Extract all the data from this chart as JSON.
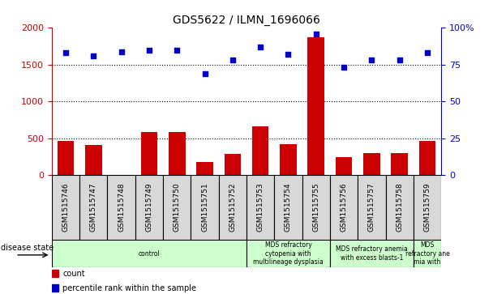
{
  "title": "GDS5622 / ILMN_1696066",
  "samples": [
    "GSM1515746",
    "GSM1515747",
    "GSM1515748",
    "GSM1515749",
    "GSM1515750",
    "GSM1515751",
    "GSM1515752",
    "GSM1515753",
    "GSM1515754",
    "GSM1515755",
    "GSM1515756",
    "GSM1515757",
    "GSM1515758",
    "GSM1515759"
  ],
  "counts": [
    460,
    410,
    0,
    580,
    580,
    180,
    290,
    660,
    420,
    1870,
    240,
    300,
    300,
    460
  ],
  "percentile_ranks": [
    83,
    81,
    84,
    85,
    85,
    69,
    78,
    87,
    82,
    96,
    73,
    78,
    78,
    83
  ],
  "bar_color": "#cc0000",
  "dot_color": "#0000cc",
  "left_axis_color": "#cc0000",
  "right_axis_color": "#0000cc",
  "ylim_left": [
    0,
    2000
  ],
  "ylim_right": [
    0,
    100
  ],
  "left_yticks": [
    0,
    500,
    1000,
    1500,
    2000
  ],
  "right_yticks": [
    0,
    25,
    50,
    75,
    100
  ],
  "right_yticklabels": [
    "0",
    "25",
    "50",
    "75",
    "100%"
  ],
  "grid_values": [
    500,
    1000,
    1500
  ],
  "disease_states": [
    {
      "label": "control",
      "start": 0,
      "end": 7
    },
    {
      "label": "MDS refractory\ncytopenia with\nmultilineage dysplasia",
      "start": 7,
      "end": 10
    },
    {
      "label": "MDS refractory anemia\nwith excess blasts-1",
      "start": 10,
      "end": 13
    },
    {
      "label": "MDS\nrefractory ane\nmia with",
      "start": 13,
      "end": 14
    }
  ],
  "ds_cell_color": "#ccffcc",
  "sample_cell_color": "#d8d8d8",
  "disease_state_label": "disease state",
  "legend_items": [
    {
      "label": "count",
      "color": "#cc0000"
    },
    {
      "label": "percentile rank within the sample",
      "color": "#0000cc"
    }
  ]
}
